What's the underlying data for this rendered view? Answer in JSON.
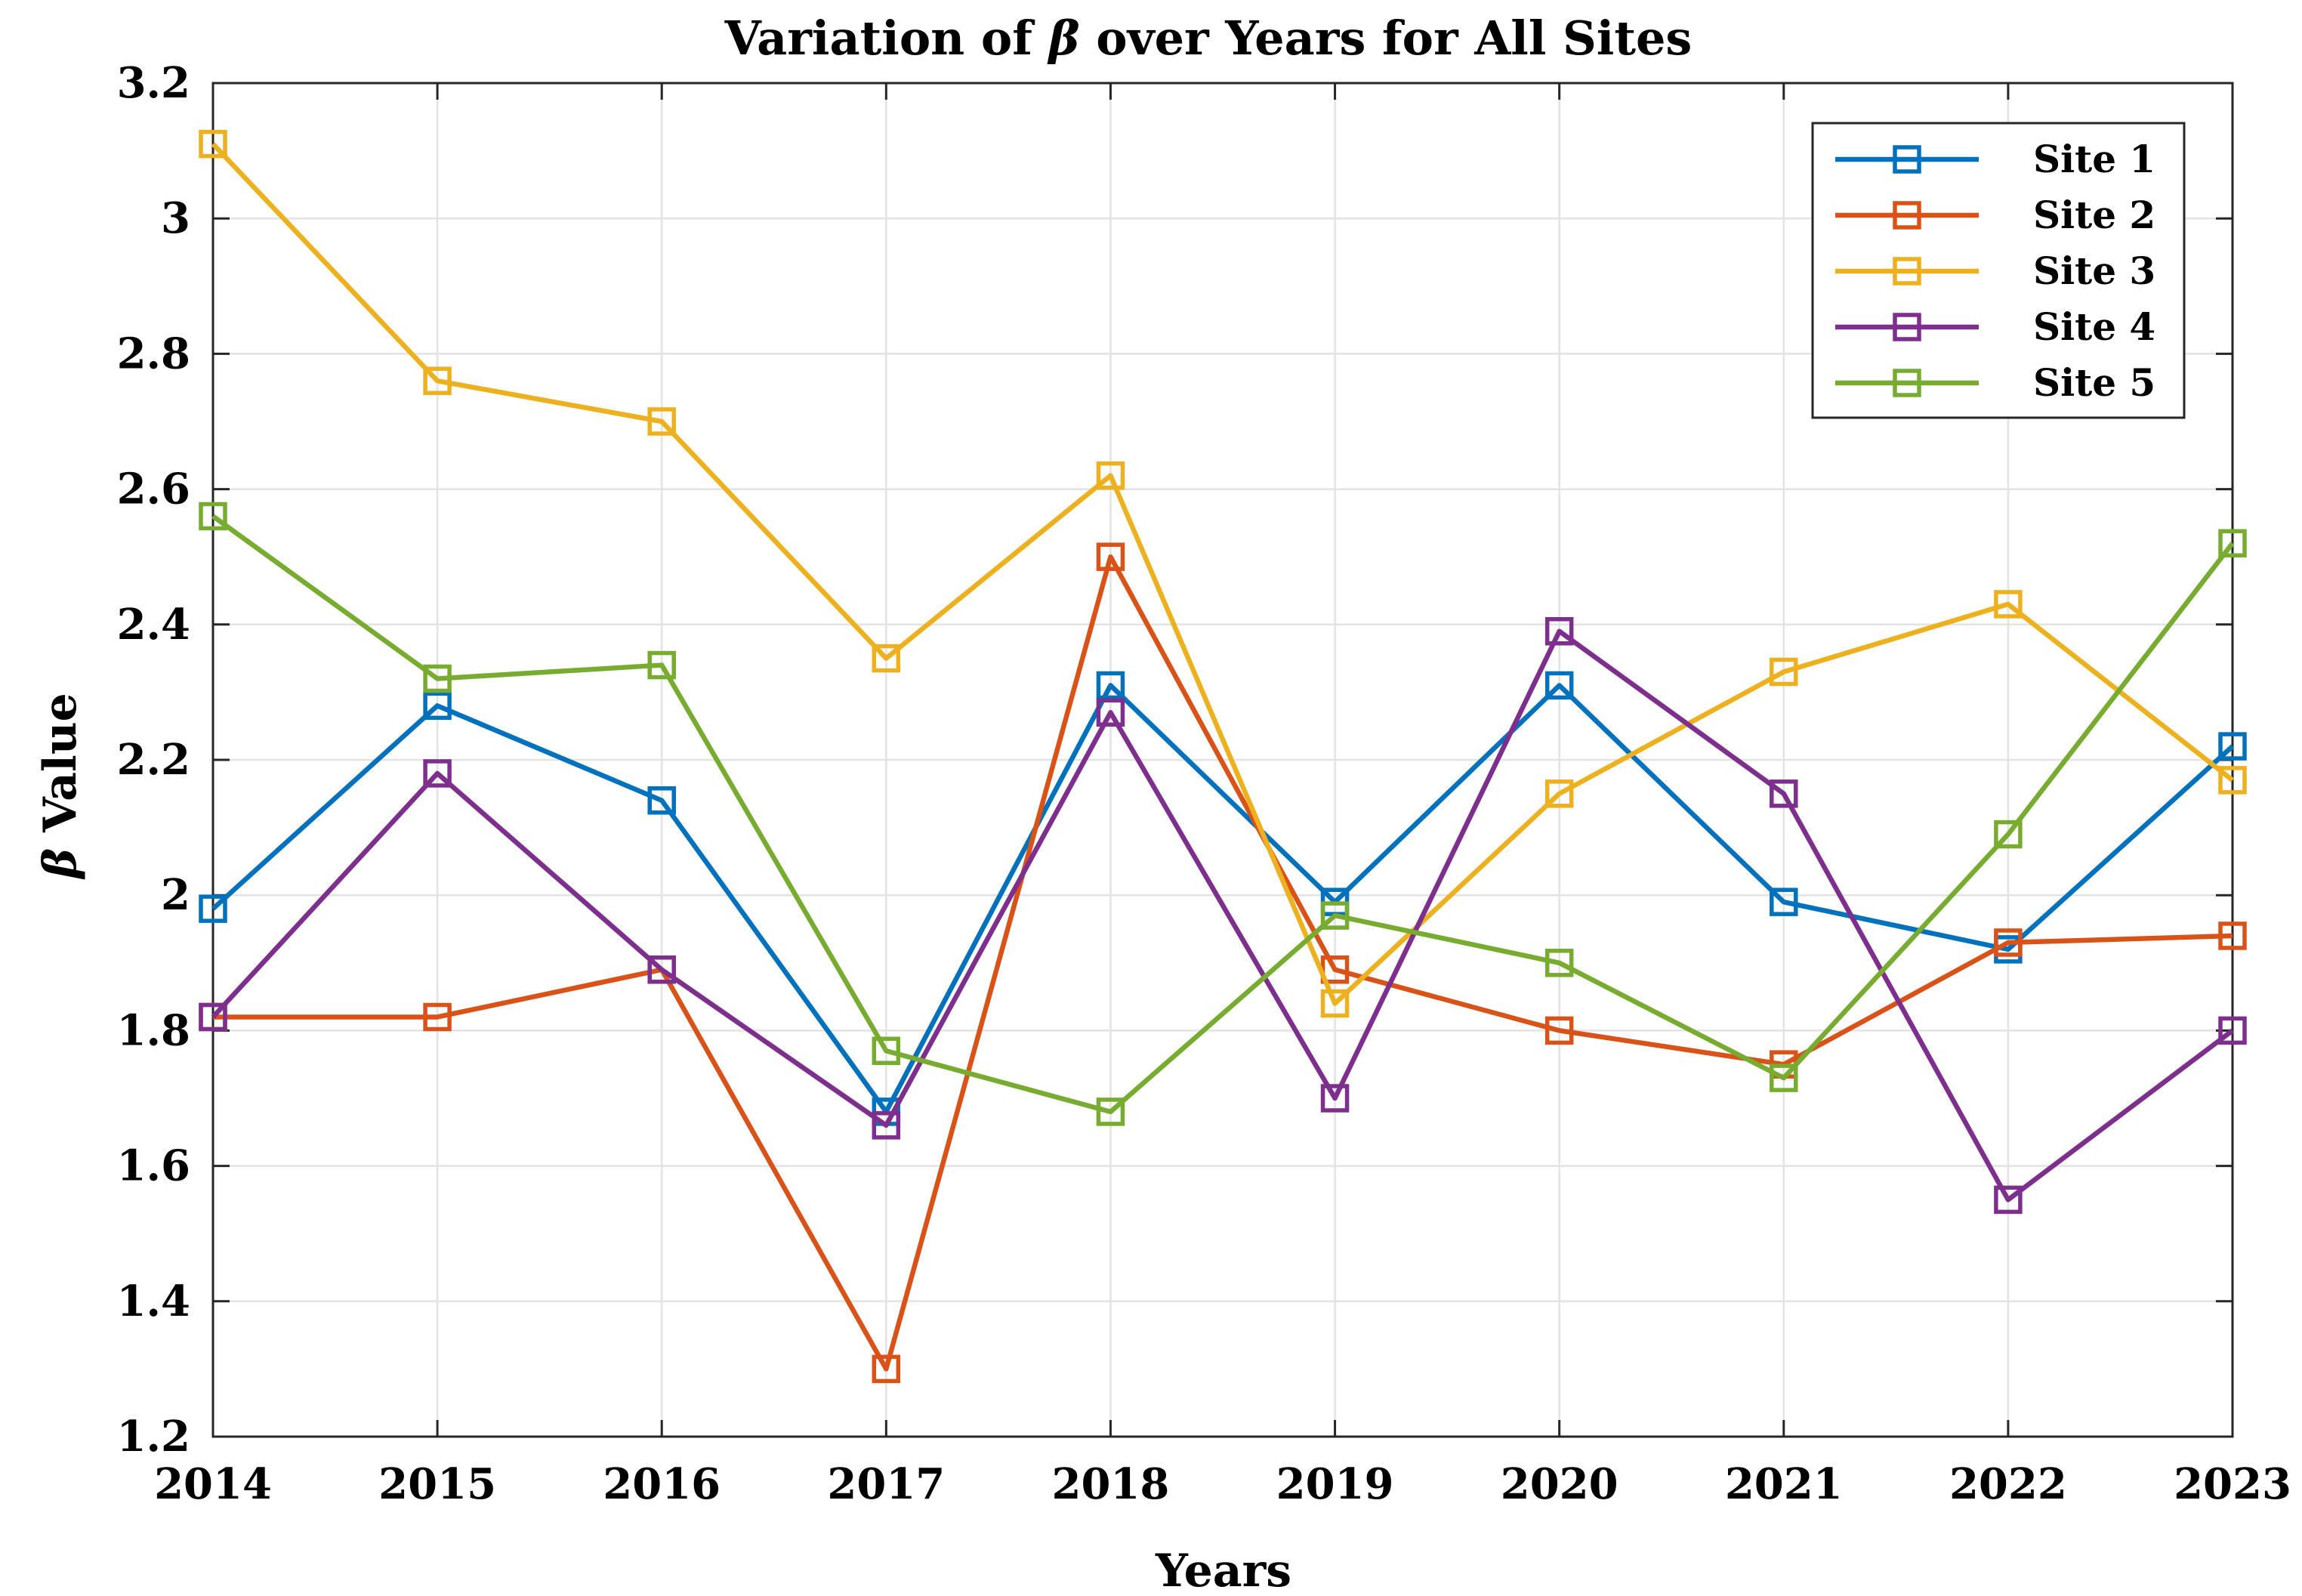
{
  "chart_data": {
    "type": "line",
    "title_prefix": "Variation of ",
    "title_symbol": "β",
    "title_suffix": " over Years for All Sites",
    "xlabel": "Years",
    "ylabel_symbol": "β",
    "ylabel_suffix": " Value",
    "x": [
      2014,
      2015,
      2016,
      2017,
      2018,
      2019,
      2020,
      2021,
      2022,
      2023
    ],
    "x_tick_labels": [
      "2014",
      "2015",
      "2016",
      "2017",
      "2018",
      "2019",
      "2020",
      "2021",
      "2022",
      "2023"
    ],
    "ylim": [
      1.2,
      3.2
    ],
    "y_ticks": [
      1.2,
      1.4,
      1.6,
      1.8,
      2.0,
      2.2,
      2.4,
      2.6,
      2.8,
      3.0,
      3.2
    ],
    "y_tick_labels": [
      "1.2",
      "1.4",
      "1.6",
      "1.8",
      "2",
      "2.2",
      "2.4",
      "2.6",
      "2.8",
      "3",
      "3.2"
    ],
    "grid": true,
    "legend_position": "top-right",
    "marker": "square",
    "series": [
      {
        "name": "Site 1",
        "color": "#0072BD",
        "values": [
          1.98,
          2.28,
          2.14,
          1.68,
          2.31,
          1.99,
          2.31,
          1.99,
          1.92,
          2.22
        ]
      },
      {
        "name": "Site 2",
        "color": "#D95319",
        "values": [
          1.82,
          1.82,
          1.89,
          1.3,
          2.5,
          1.89,
          1.8,
          1.75,
          1.93,
          1.94
        ]
      },
      {
        "name": "Site 3",
        "color": "#EDB120",
        "values": [
          3.11,
          2.76,
          2.7,
          2.35,
          2.62,
          1.84,
          2.15,
          2.33,
          2.43,
          2.17
        ]
      },
      {
        "name": "Site 4",
        "color": "#7E2F8E",
        "values": [
          1.82,
          2.18,
          1.89,
          1.66,
          2.27,
          1.7,
          2.39,
          2.15,
          1.55,
          1.8
        ]
      },
      {
        "name": "Site 5",
        "color": "#77AC30",
        "values": [
          2.56,
          2.32,
          2.34,
          1.77,
          1.68,
          1.97,
          1.9,
          1.73,
          2.09,
          2.52
        ]
      }
    ]
  }
}
